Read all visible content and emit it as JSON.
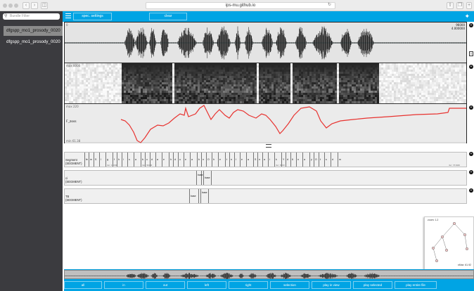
{
  "browser": {
    "url": "ips-mu.github.io",
    "reload_icon": "reload-icon",
    "share_icon": "share-icon",
    "tabs_icon": "tabs-icon"
  },
  "sidebar": {
    "filter_placeholder": "Bundle Filter",
    "bundles": [
      {
        "label": "dfgspp_mo1_prosody_0020",
        "selected": true
      },
      {
        "label": "dfgspp_mo1_prosody_0020",
        "selected": false
      }
    ]
  },
  "topbar": {
    "menu_icon": "hamburger-icon",
    "buttons": [
      {
        "label": "spec. settings"
      },
      {
        "label": "clear"
      }
    ],
    "logo_icon": "emu-bird-icon"
  },
  "signal": {
    "osci": {
      "top_left": "0",
      "top_right_1": "96000",
      "top_right_2": "4.000000"
    },
    "spec": {
      "top_left": "max 8000",
      "bottom_left": "0"
    },
    "ssff": {
      "top_left": "max 220",
      "track_name": "F_zoss",
      "bottom_left": "min 61.38"
    },
    "add_icon": "plus-circle-icon",
    "menu_icon": "list-icon"
  },
  "levels": [
    {
      "name": "Segment",
      "type": "(SEGMENT)",
      "labels": [
        "fe",
        "m",
        "S",
        "l",
        "g",
        "f",
        "h",
        "i",
        "s",
        "a",
        "b",
        "o",
        "d",
        "a",
        "e",
        "h",
        "d",
        "u",
        "e",
        "a",
        "b",
        "n",
        "O",
        "h",
        "e",
        "t",
        "n",
        "I",
        "e",
        "a",
        "S",
        "n",
        "a",
        "i",
        "k",
        "Y",
        "d",
        "6",
        "n",
        "a",
        "y",
        "O",
        "t",
        "s",
        "d",
        "m",
        "#"
      ],
      "times": [
        "0.4",
        "0.56",
        "0.8",
        "1.2",
        "3.1"
      ],
      "dur_left": "dur: 16000",
      "dur_mid": "dur: 36440",
      "dur_right": "dur: 8000",
      "dur_far": "dur: 371606"
    },
    {
      "name": "ci",
      "type": "(SEGMENT)",
      "labels": [
        "base",
        "base"
      ]
    },
    {
      "name": "TB",
      "type": "(SEGMENT)",
      "labels": [
        "base",
        "base"
      ]
    }
  ],
  "hierarchy": {
    "top_label": "zoom: 1.2",
    "bottom_label": "xMax: 61.92"
  },
  "overview": {
    "tool_label": ""
  },
  "bottombar": {
    "buttons": [
      {
        "label": "all"
      },
      {
        "label": "in"
      },
      {
        "label": "out"
      },
      {
        "label": "left"
      },
      {
        "label": "right"
      },
      {
        "label": "selection"
      },
      {
        "label": "play in view"
      },
      {
        "label": "play selected"
      },
      {
        "label": "play entire file"
      }
    ]
  },
  "colors": {
    "accent": "#00a4e4",
    "sidebar": "#3b3b3f",
    "pitch": "#e8322f"
  }
}
